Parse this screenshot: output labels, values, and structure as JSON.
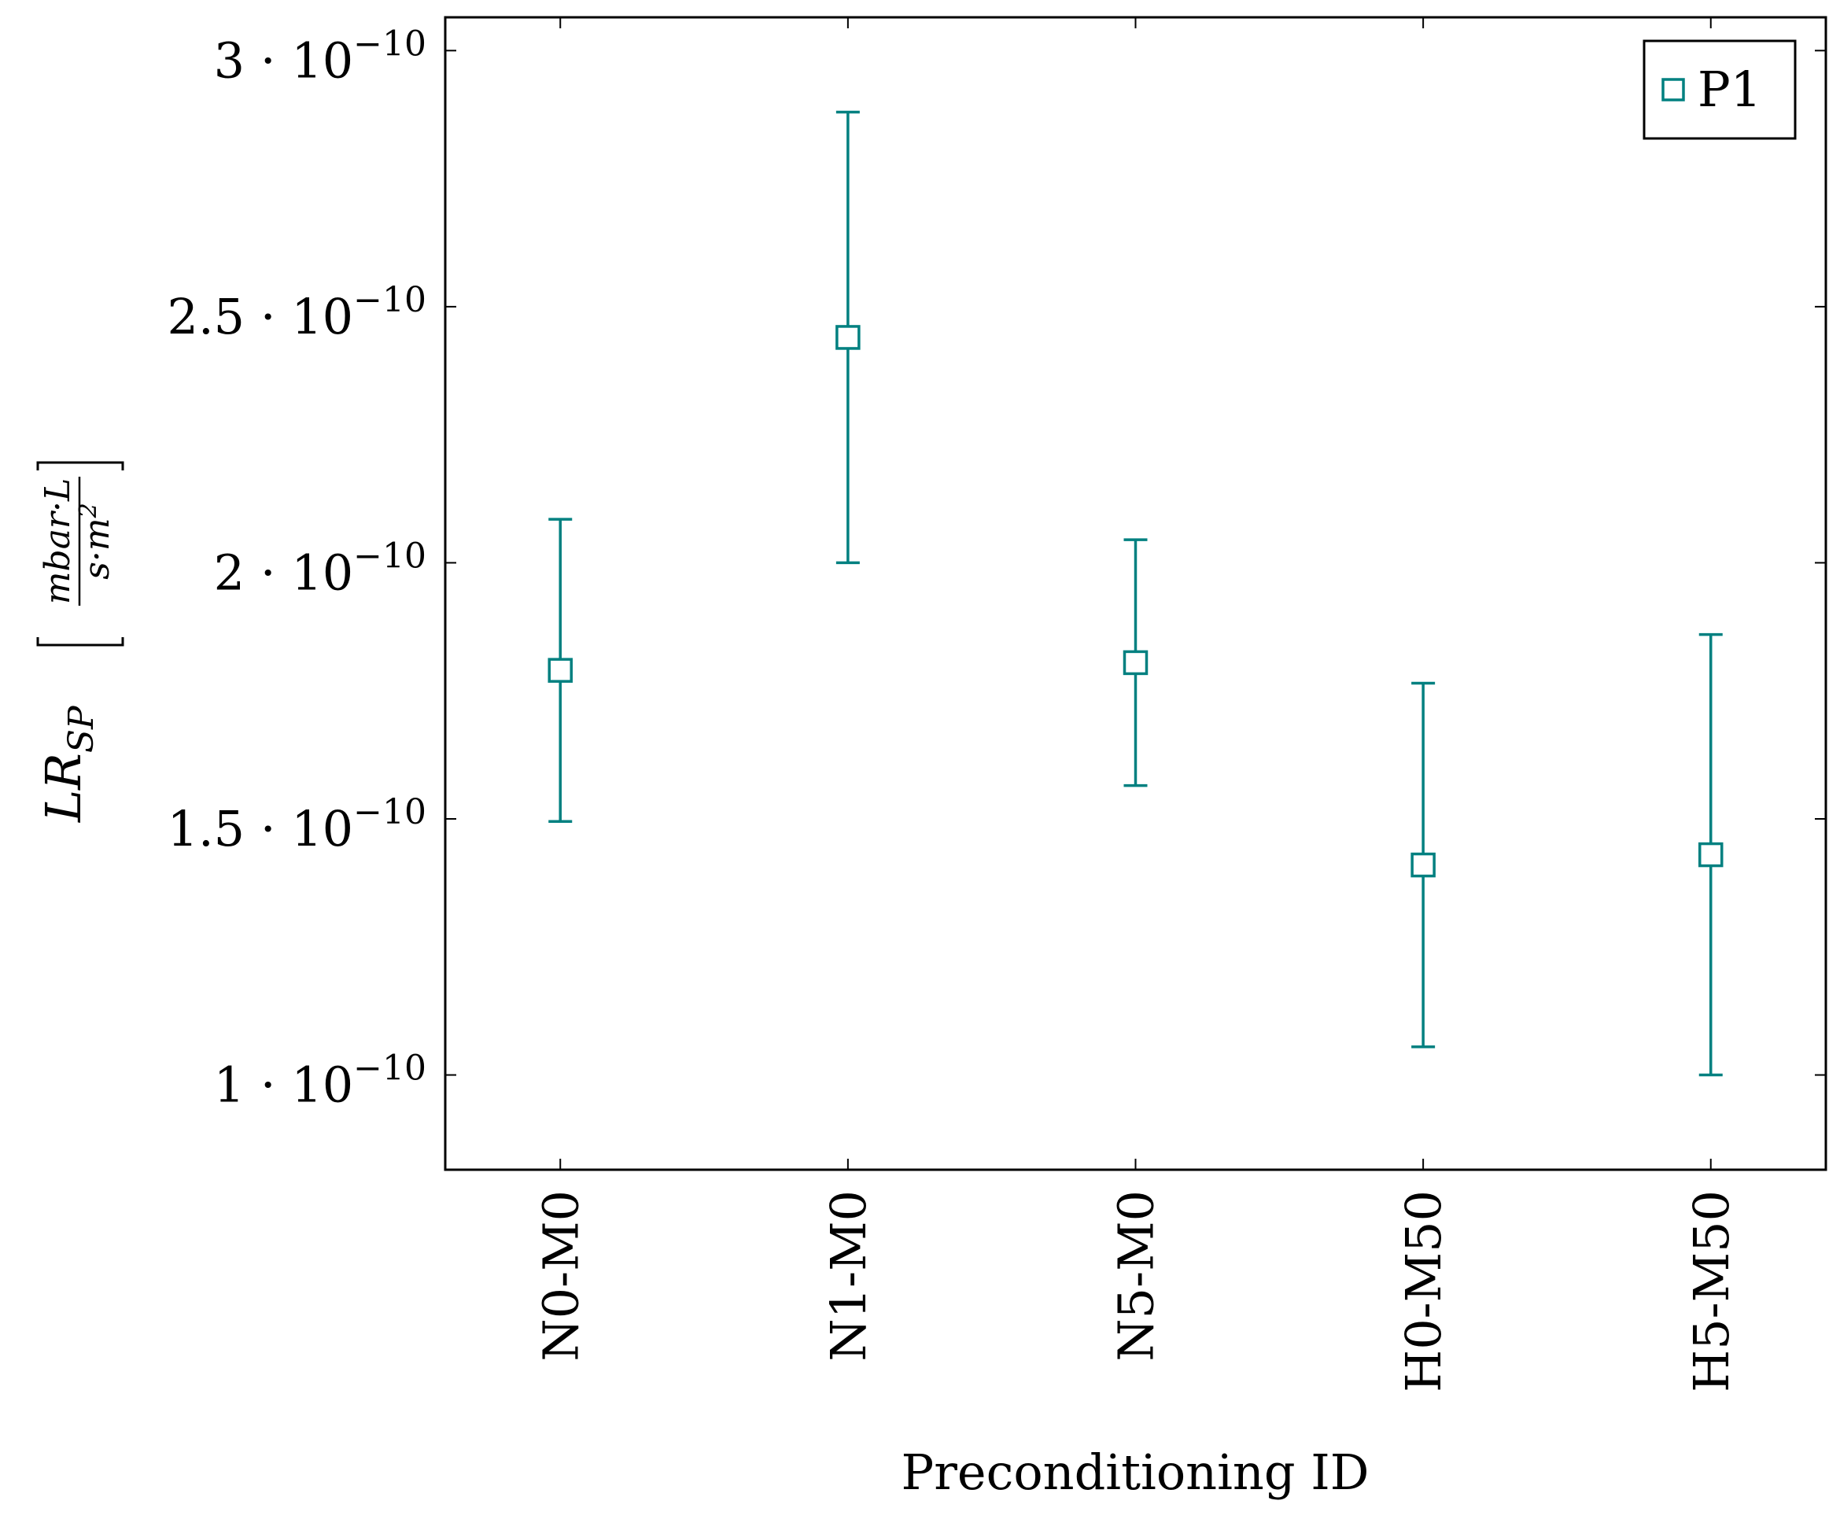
{
  "chart_data": {
    "type": "scatter",
    "title": "",
    "xlabel": "Preconditioning ID",
    "ylabel": {
      "main": "LR",
      "subscript": "SP",
      "unit_numerator": "mbar·L",
      "unit_denominator_base": "s·m",
      "unit_denominator_exp": "2"
    },
    "categories": [
      "N0-M0",
      "N1-M0",
      "N5-M0",
      "H0-M50",
      "H5-M50"
    ],
    "ylim": [
      8.15e-11,
      3.065e-10
    ],
    "yticks": [
      {
        "value": 1e-10,
        "mantissa": "1",
        "base": "10",
        "exponent": "−10"
      },
      {
        "value": 1.5e-10,
        "mantissa": "1.5",
        "base": "10",
        "exponent": "−10"
      },
      {
        "value": 2e-10,
        "mantissa": "2",
        "base": "10",
        "exponent": "−10"
      },
      {
        "value": 2.5e-10,
        "mantissa": "2.5",
        "base": "10",
        "exponent": "−10"
      },
      {
        "value": 3e-10,
        "mantissa": "3",
        "base": "10",
        "exponent": "−10"
      }
    ],
    "series": [
      {
        "name": "P1",
        "color": "#008080",
        "marker": "square-open",
        "values": [
          1.79e-10,
          2.44e-10,
          1.805e-10,
          1.41e-10,
          1.43e-10
        ],
        "err_low": [
          1.495e-10,
          2e-10,
          1.565e-10,
          1.055e-10,
          1e-10
        ],
        "err_high": [
          2.085e-10,
          2.88e-10,
          2.045e-10,
          1.765e-10,
          1.86e-10
        ]
      }
    ],
    "legend": {
      "position": "top-right",
      "entries": [
        "P1"
      ]
    },
    "grid": false
  }
}
